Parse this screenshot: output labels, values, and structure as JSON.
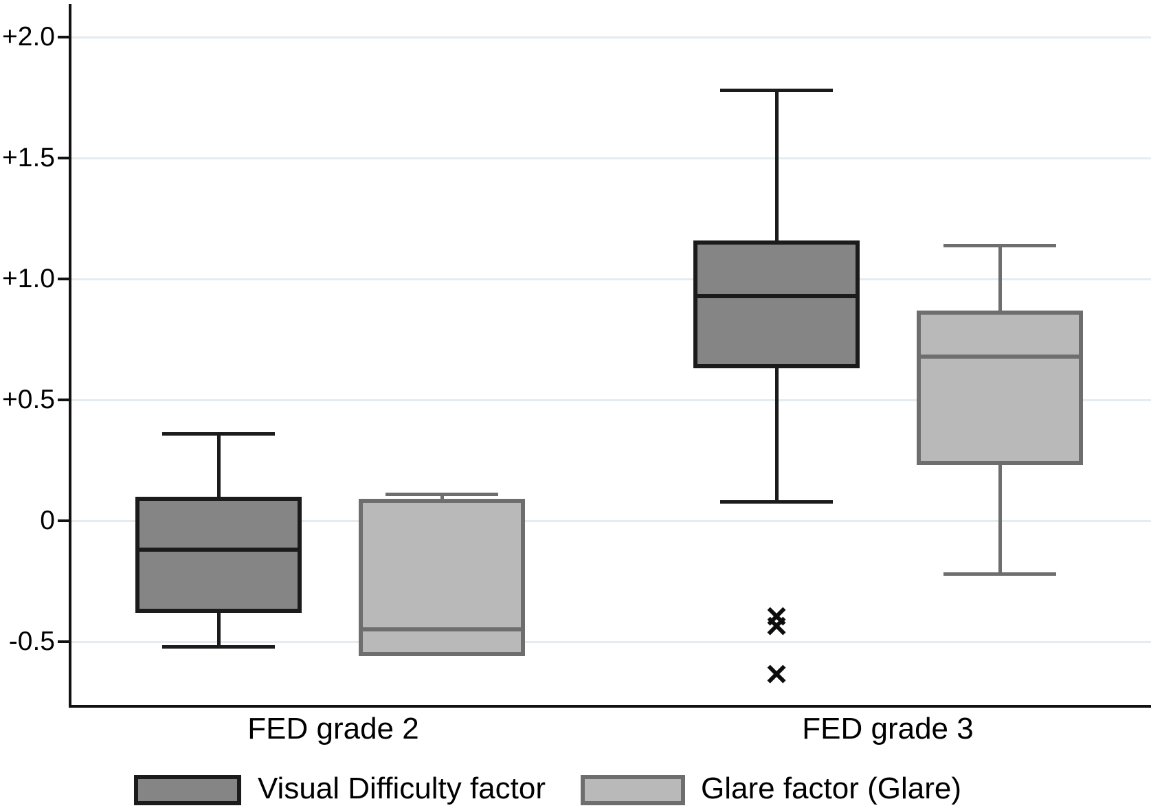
{
  "chart_data": {
    "type": "boxplot",
    "title": "",
    "categories": [
      "FED grade 2",
      "FED grade 3"
    ],
    "y_axis": {
      "ticks": [
        {
          "label": "+2.0",
          "value": 2.0
        },
        {
          "label": "+1.5",
          "value": 1.5
        },
        {
          "label": "+1.0",
          "value": 1.0
        },
        {
          "label": "+0.5",
          "value": 0.5
        },
        {
          "label": "0",
          "value": 0.0
        },
        {
          "label": "-0.5",
          "value": -0.5
        }
      ],
      "range": [
        -0.77,
        2.13
      ],
      "gridlines": true
    },
    "series": [
      {
        "name": "Visual Difficulty factor",
        "fill": "#858585",
        "stroke": "#1b1b1b",
        "boxes": [
          {
            "category": "FED grade 2",
            "whisker_low": -0.52,
            "q1": -0.38,
            "median": -0.12,
            "q3": 0.1,
            "whisker_high": 0.36,
            "outliers": []
          },
          {
            "category": "FED grade 3",
            "whisker_low": 0.08,
            "q1": 0.63,
            "median": 0.93,
            "q3": 1.16,
            "whisker_high": 1.78,
            "outliers": [
              -0.4,
              -0.44,
              -0.64
            ]
          }
        ]
      },
      {
        "name": "Glare factor (Glare)",
        "fill": "#b9b9b9",
        "stroke": "#6e6e6e",
        "boxes": [
          {
            "category": "FED grade 2",
            "whisker_low": null,
            "q1": -0.56,
            "median": -0.45,
            "q3": 0.09,
            "whisker_high": 0.11,
            "outliers": []
          },
          {
            "category": "FED grade 3",
            "whisker_low": -0.22,
            "q1": 0.23,
            "median": 0.68,
            "q3": 0.87,
            "whisker_high": 1.14,
            "outliers": []
          }
        ]
      }
    ],
    "outlier_marker": "×",
    "legend_position": "bottom"
  }
}
